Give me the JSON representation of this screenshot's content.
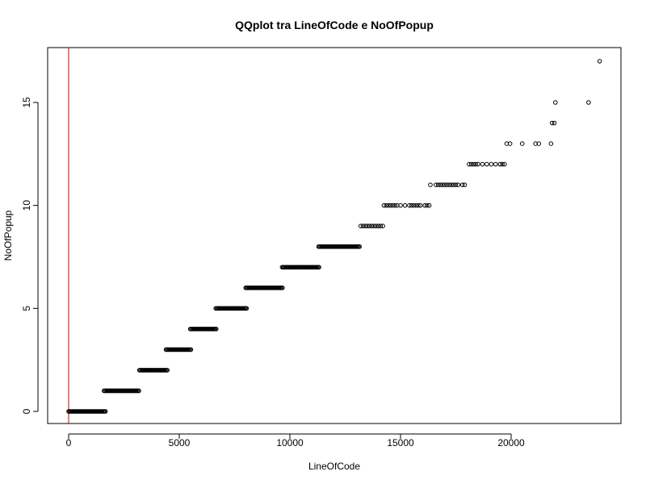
{
  "chart_data": {
    "type": "scatter",
    "title": "QQplot tra LineOfCode e NoOfPopup",
    "xlabel": "LineOfCode",
    "ylabel": "NoOfPopup",
    "xlim": [
      -1000,
      25000
    ],
    "ylim": [
      -1,
      18
    ],
    "x_ticks": [
      0,
      5000,
      10000,
      15000,
      20000
    ],
    "x_tick_labels": [
      "0",
      "5000",
      "10000",
      "15000",
      "20000"
    ],
    "y_ticks": [
      0,
      5,
      10,
      15
    ],
    "y_tick_labels": [
      "0",
      "5",
      "10",
      "15"
    ],
    "grid": false,
    "legend": "none",
    "colors": {
      "points": "#000000",
      "vline": "#cc0000",
      "frame": "#000000"
    },
    "vline_x": 0,
    "dense_segments": [
      {
        "y": 0,
        "x_start": 0,
        "x_end": 1700
      },
      {
        "y": 1,
        "x_start": 1600,
        "x_end": 3200
      },
      {
        "y": 2,
        "x_start": 3200,
        "x_end": 4500
      },
      {
        "y": 3,
        "x_start": 4400,
        "x_end": 5550
      },
      {
        "y": 4,
        "x_start": 5500,
        "x_end": 6700
      },
      {
        "y": 5,
        "x_start": 6650,
        "x_end": 8050
      },
      {
        "y": 6,
        "x_start": 8000,
        "x_end": 9700
      },
      {
        "y": 7,
        "x_start": 9650,
        "x_end": 11350
      },
      {
        "y": 8,
        "x_start": 11300,
        "x_end": 13150
      }
    ],
    "points": [
      [
        13200,
        9
      ],
      [
        13300,
        9
      ],
      [
        13400,
        9
      ],
      [
        13500,
        9
      ],
      [
        13600,
        9
      ],
      [
        13700,
        9
      ],
      [
        13800,
        9
      ],
      [
        13900,
        9
      ],
      [
        14000,
        9
      ],
      [
        14100,
        9
      ],
      [
        14200,
        9
      ],
      [
        14250,
        10
      ],
      [
        14350,
        10
      ],
      [
        14450,
        10
      ],
      [
        14550,
        10
      ],
      [
        14650,
        10
      ],
      [
        14750,
        10
      ],
      [
        14850,
        10
      ],
      [
        15000,
        10
      ],
      [
        15200,
        10
      ],
      [
        15400,
        10
      ],
      [
        15500,
        10
      ],
      [
        15600,
        10
      ],
      [
        15700,
        10
      ],
      [
        15800,
        10
      ],
      [
        15900,
        10
      ],
      [
        16100,
        10
      ],
      [
        16200,
        10
      ],
      [
        16300,
        10
      ],
      [
        16350,
        11
      ],
      [
        16600,
        11
      ],
      [
        16700,
        11
      ],
      [
        16800,
        11
      ],
      [
        16900,
        11
      ],
      [
        17000,
        11
      ],
      [
        17100,
        11
      ],
      [
        17200,
        11
      ],
      [
        17300,
        11
      ],
      [
        17400,
        11
      ],
      [
        17500,
        11
      ],
      [
        17600,
        11
      ],
      [
        17800,
        11
      ],
      [
        17900,
        11
      ],
      [
        18100,
        12
      ],
      [
        18200,
        12
      ],
      [
        18300,
        12
      ],
      [
        18400,
        12
      ],
      [
        18500,
        12
      ],
      [
        18700,
        12
      ],
      [
        18900,
        12
      ],
      [
        19100,
        12
      ],
      [
        19300,
        12
      ],
      [
        19500,
        12
      ],
      [
        19600,
        12
      ],
      [
        19700,
        12
      ],
      [
        19800,
        13
      ],
      [
        19950,
        13
      ],
      [
        20500,
        13
      ],
      [
        21100,
        13
      ],
      [
        21250,
        13
      ],
      [
        21800,
        13
      ],
      [
        21850,
        14
      ],
      [
        21950,
        14
      ],
      [
        22000,
        15
      ],
      [
        23500,
        15
      ],
      [
        24000,
        17
      ]
    ]
  }
}
